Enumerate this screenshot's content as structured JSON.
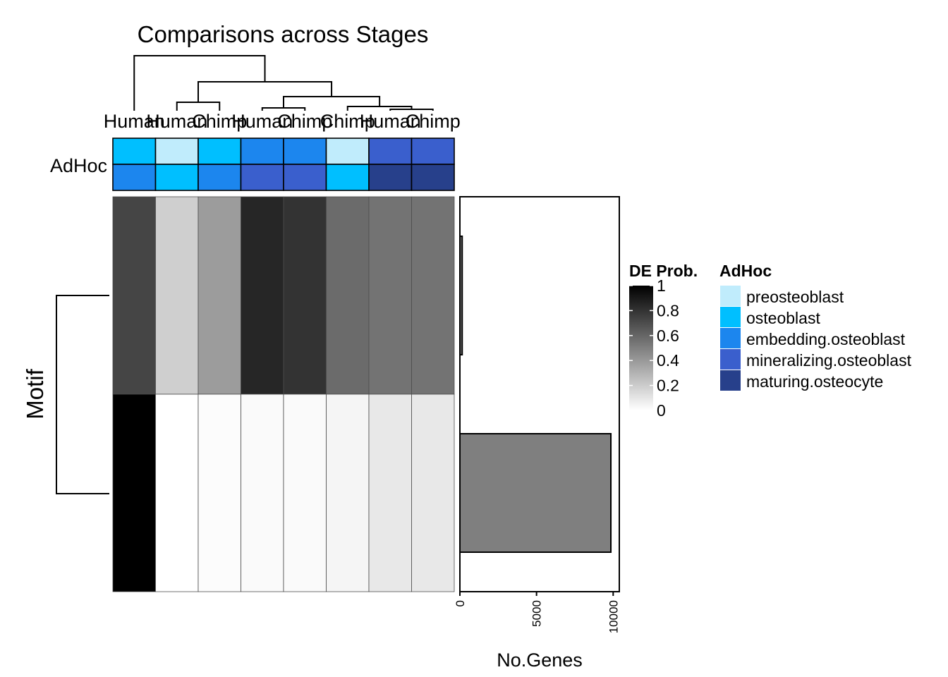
{
  "chart_data": {
    "type": "heatmap",
    "title": "Comparisons across Stages",
    "column_labels": [
      "Human",
      "Human",
      "Chimp",
      "Human",
      "Chimp",
      "Chimp",
      "Human",
      "Chimp"
    ],
    "row_axis_label": "Motif",
    "annotation_label": "AdHoc",
    "annotation": {
      "row1": [
        "osteoblast",
        "preosteoblast",
        "osteoblast",
        "embedding.osteoblast",
        "embedding.osteoblast",
        "preosteoblast",
        "mineralizing.osteoblast",
        "mineralizing.osteoblast"
      ],
      "row2": [
        "embedding.osteoblast",
        "osteoblast",
        "embedding.osteoblast",
        "mineralizing.osteoblast",
        "mineralizing.osteoblast",
        "osteoblast",
        "maturing.osteocyte",
        "maturing.osteocyte"
      ]
    },
    "matrix": [
      [
        0.73,
        0.19,
        0.39,
        0.85,
        0.8,
        0.58,
        0.55,
        0.55
      ],
      [
        1.0,
        0.0,
        0.01,
        0.02,
        0.02,
        0.04,
        0.09,
        0.09
      ]
    ],
    "colorbar": {
      "title": "DE Prob.",
      "range": [
        0,
        1
      ],
      "ticks": [
        "0",
        "0.2",
        "0.4",
        "0.6",
        "0.8",
        "1"
      ]
    },
    "bar_chart": {
      "xlabel": "No.Genes",
      "values": [
        150,
        9850
      ],
      "xlim": [
        0,
        10400
      ],
      "ticks": [
        {
          "value": 0,
          "label": "0"
        },
        {
          "value": 5000,
          "label": "5000"
        },
        {
          "value": 10000,
          "label": "10000"
        }
      ],
      "bar_color": "#7f7f7f"
    },
    "legend": {
      "title": "AdHoc",
      "entries": [
        {
          "key": "preosteoblast",
          "label": "preosteoblast",
          "color": "#c0ecfc"
        },
        {
          "key": "osteoblast",
          "label": "osteoblast",
          "color": "#00bfff"
        },
        {
          "key": "embedding.osteoblast",
          "label": "embedding.osteoblast",
          "color": "#1c86ee"
        },
        {
          "key": "mineralizing.osteoblast",
          "label": "mineralizing.osteoblast",
          "color": "#3a5fcd"
        },
        {
          "key": "maturing.osteocyte",
          "label": "maturing.osteocyte",
          "color": "#27408b"
        }
      ]
    }
  }
}
